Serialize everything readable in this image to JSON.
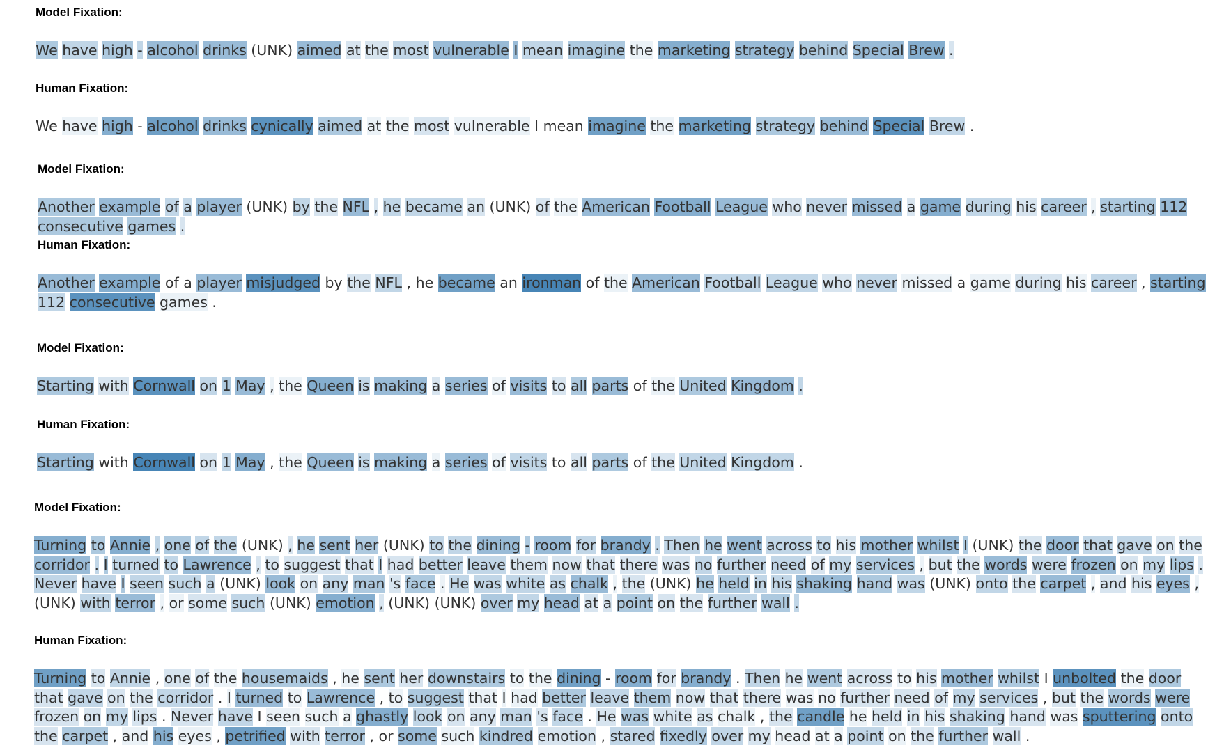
{
  "panels": [
    {
      "label": "Model Fixation:",
      "tokens": [
        "We",
        "have",
        "high",
        "-",
        "alcohol",
        "drinks",
        "(UNK)",
        "aimed",
        "at",
        "the",
        "most",
        "vulnerable",
        "I",
        "mean",
        "imagine",
        "the",
        "marketing",
        "strategy",
        "behind",
        "Special",
        "Brew",
        "."
      ],
      "weights": [
        0.4,
        0.3,
        0.4,
        0.3,
        0.5,
        0.5,
        0,
        0.5,
        0.2,
        0.2,
        0.3,
        0.5,
        0.5,
        0.3,
        0.4,
        0.1,
        0.6,
        0.5,
        0.4,
        0.5,
        0.6,
        0.2
      ]
    },
    {
      "label": "Human Fixation:",
      "tokens": [
        "We",
        "have",
        "high",
        "-",
        "alcohol",
        "drinks",
        "cynically",
        "aimed",
        "at",
        "the",
        "most",
        "vulnerable",
        "I",
        "mean",
        "imagine",
        "the",
        "marketing",
        "strategy",
        "behind",
        "Special",
        "Brew",
        "."
      ],
      "weights": [
        0,
        0.1,
        0.6,
        0,
        0.7,
        0.5,
        0.8,
        0.4,
        0.1,
        0.1,
        0.2,
        0.1,
        0,
        0,
        0.7,
        0.1,
        0.7,
        0.4,
        0.5,
        0.8,
        0.3,
        0
      ]
    },
    {
      "label": "Model Fixation:",
      "tokens": [
        "Another",
        "example",
        "of",
        "a",
        "player",
        "(UNK)",
        "by",
        "the",
        "NFL",
        ",",
        "he",
        "became",
        "an",
        "(UNK)",
        "of",
        "the",
        "American",
        "Football",
        "League",
        "who",
        "never",
        "missed",
        "a",
        "game",
        "during",
        "his",
        "career",
        ",",
        "starting",
        "112",
        "consecutive",
        "games",
        "."
      ],
      "weights": [
        0.4,
        0.5,
        0.3,
        0.3,
        0.5,
        0,
        0.3,
        0.2,
        0.5,
        0.2,
        0.3,
        0.3,
        0.2,
        0,
        0.2,
        0.1,
        0.5,
        0.6,
        0.5,
        0.2,
        0.3,
        0.5,
        0.2,
        0.6,
        0.3,
        0.2,
        0.4,
        0.1,
        0.4,
        0.5,
        0.4,
        0.4,
        0.2
      ]
    },
    {
      "label": "Human Fixation:",
      "tokens": [
        "Another",
        "example",
        "of",
        "a",
        "player",
        "misjudged",
        "by",
        "the",
        "NFL",
        ",",
        "he",
        "became",
        "an",
        "ironman",
        "of",
        "the",
        "American",
        "Football",
        "League",
        "who",
        "never",
        "missed",
        "a",
        "game",
        "during",
        "his",
        "career",
        ",",
        "starting",
        "112",
        "consecutive",
        "games",
        "."
      ],
      "weights": [
        0.5,
        0.6,
        0,
        0,
        0.5,
        0.8,
        0,
        0.2,
        0.3,
        0,
        0,
        0.7,
        0,
        0.9,
        0,
        0.1,
        0.5,
        0.3,
        0.3,
        0.2,
        0.3,
        0.1,
        0,
        0.1,
        0.2,
        0.1,
        0.3,
        0,
        0.6,
        0.3,
        0.8,
        0.1,
        0
      ]
    },
    {
      "label": "Model Fixation:",
      "tokens": [
        "Starting",
        "with",
        "Cornwall",
        "on",
        "1",
        "May",
        ",",
        "the",
        "Queen",
        "is",
        "making",
        "a",
        "series",
        "of",
        "visits",
        "to",
        "all",
        "parts",
        "of",
        "the",
        "United",
        "Kingdom",
        "."
      ],
      "weights": [
        0.4,
        0.2,
        0.8,
        0.3,
        0.4,
        0.5,
        0.1,
        0.1,
        0.6,
        0.3,
        0.5,
        0.2,
        0.5,
        0.1,
        0.5,
        0.2,
        0.4,
        0.5,
        0,
        0.1,
        0.4,
        0.5,
        0.3
      ]
    },
    {
      "label": "Human Fixation:",
      "tokens": [
        "Starting",
        "with",
        "Cornwall",
        "on",
        "1",
        "May",
        ",",
        "the",
        "Queen",
        "is",
        "making",
        "a",
        "series",
        "of",
        "visits",
        "to",
        "all",
        "parts",
        "of",
        "the",
        "United",
        "Kingdom",
        "."
      ],
      "weights": [
        0.5,
        0,
        0.9,
        0.2,
        0.3,
        0.6,
        0,
        0.1,
        0.5,
        0.3,
        0.5,
        0.1,
        0.5,
        0.1,
        0.3,
        0,
        0.2,
        0.4,
        0,
        0.2,
        0.3,
        0.3,
        0
      ]
    },
    {
      "label": "Model Fixation:",
      "tokens": [
        "Turning",
        "to",
        "Annie",
        ",",
        "one",
        "of",
        "the",
        "(UNK)",
        ",",
        "he",
        "sent",
        "her",
        "(UNK)",
        "to",
        "the",
        "dining",
        "-",
        "room",
        "for",
        "brandy",
        ".",
        "Then",
        "he",
        "went",
        "across",
        "to",
        "his",
        "mother",
        "whilst",
        "I",
        "(UNK)",
        "the",
        "door",
        "that",
        "gave",
        "on",
        "the",
        "corridor",
        ".",
        "I",
        "turned",
        "to",
        "Lawrence",
        ",",
        "to",
        "suggest",
        "that",
        "I",
        "had",
        "better",
        "leave",
        "them",
        "now",
        "that",
        "there",
        "was",
        "no",
        "further",
        "need",
        "of",
        "my",
        "services",
        ",",
        "but",
        "the",
        "words",
        "were",
        "frozen",
        "on",
        "my",
        "lips",
        ".",
        "Never",
        "have",
        "I",
        "seen",
        "such",
        "a",
        "(UNK)",
        "look",
        "on",
        "any",
        "man",
        "'s",
        "face",
        ".",
        "He",
        "was",
        "white",
        "as",
        "chalk",
        ",",
        "the",
        "(UNK)",
        "he",
        "held",
        "in",
        "his",
        "shaking",
        "hand",
        "was",
        "(UNK)",
        "onto",
        "the",
        "carpet",
        ",",
        "and",
        "his",
        "eyes",
        ",",
        "(UNK)",
        "with",
        "terror",
        ",",
        "or",
        "some",
        "such",
        "(UNK)",
        "emotion",
        ",",
        "(UNK)",
        "(UNK)",
        "over",
        "my",
        "head",
        "at",
        "a",
        "point",
        "on",
        "the",
        "further",
        "wall",
        "."
      ],
      "weights": [
        0.6,
        0.4,
        0.6,
        0.3,
        0.4,
        0.3,
        0.3,
        0,
        0.2,
        0.4,
        0.5,
        0.4,
        0,
        0.3,
        0.3,
        0.5,
        0.4,
        0.5,
        0.3,
        0.6,
        0.3,
        0.3,
        0.4,
        0.5,
        0.3,
        0.3,
        0.2,
        0.5,
        0.5,
        0.4,
        0,
        0.2,
        0.5,
        0.3,
        0.3,
        0.2,
        0.2,
        0.5,
        0.3,
        0.4,
        0.3,
        0.3,
        0.5,
        0.2,
        0.2,
        0.2,
        0.2,
        0.4,
        0.2,
        0.3,
        0.3,
        0.2,
        0.2,
        0.2,
        0.2,
        0.2,
        0.3,
        0.3,
        0.3,
        0.2,
        0.3,
        0.4,
        0.1,
        0.2,
        0.2,
        0.5,
        0.3,
        0.5,
        0.2,
        0.3,
        0.4,
        0.2,
        0.3,
        0.3,
        0.4,
        0.3,
        0.3,
        0.3,
        0,
        0.5,
        0.2,
        0.3,
        0.4,
        0.2,
        0.4,
        0.1,
        0.3,
        0.3,
        0.3,
        0.3,
        0.5,
        0.1,
        0.2,
        0,
        0.4,
        0.4,
        0.3,
        0.3,
        0.5,
        0.4,
        0.3,
        0,
        0.3,
        0.2,
        0.5,
        0.1,
        0.2,
        0.2,
        0.5,
        0.1,
        0,
        0.3,
        0.5,
        0.1,
        0.1,
        0.2,
        0.3,
        0,
        0.6,
        0.2,
        0,
        0,
        0.4,
        0.3,
        0.5,
        0.2,
        0.2,
        0.4,
        0.2,
        0.2,
        0.3,
        0.4,
        0.3
      ]
    },
    {
      "label": "Human Fixation:",
      "tokens": [
        "Turning",
        "to",
        "Annie",
        ",",
        "one",
        "of",
        "the",
        "housemaids",
        ",",
        "he",
        "sent",
        "her",
        "downstairs",
        "to",
        "the",
        "dining",
        "-",
        "room",
        "for",
        "brandy",
        ".",
        "Then",
        "he",
        "went",
        "across",
        "to",
        "his",
        "mother",
        "whilst",
        "I",
        "unbolted",
        "the",
        "door",
        "that",
        "gave",
        "on",
        "the",
        "corridor",
        ".",
        "I",
        "turned",
        "to",
        "Lawrence",
        ",",
        "to",
        "suggest",
        "that",
        "I",
        "had",
        "better",
        "leave",
        "them",
        "now",
        "that",
        "there",
        "was",
        "no",
        "further",
        "need",
        "of",
        "my",
        "services",
        ",",
        "but",
        "the",
        "words",
        "were",
        "frozen",
        "on",
        "my",
        "lips",
        ".",
        "Never",
        "have",
        "I",
        "seen",
        "such",
        "a",
        "ghastly",
        "look",
        "on",
        "any",
        "man",
        "'s",
        "face",
        ".",
        "He",
        "was",
        "white",
        "as",
        "chalk",
        ",",
        "the",
        "candle",
        "he",
        "held",
        "in",
        "his",
        "shaking",
        "hand",
        "was",
        "sputtering",
        "onto",
        "the",
        "carpet",
        ",",
        "and",
        "his",
        "eyes",
        ",",
        "petrified",
        "with",
        "terror",
        ",",
        "or",
        "some",
        "such",
        "kindred",
        "emotion",
        ",",
        "stared",
        "fixedly",
        "over",
        "my",
        "head",
        "at",
        "a",
        "point",
        "on",
        "the",
        "further",
        "wall",
        "."
      ],
      "weights": [
        0.7,
        0.2,
        0.3,
        0,
        0.2,
        0.2,
        0.1,
        0.4,
        0,
        0.1,
        0.4,
        0.2,
        0.4,
        0.1,
        0.1,
        0.7,
        0,
        0.6,
        0.2,
        0.6,
        0,
        0.3,
        0.2,
        0.4,
        0.2,
        0.1,
        0.2,
        0.5,
        0.4,
        0,
        0.8,
        0.1,
        0.4,
        0.2,
        0.3,
        0.2,
        0.2,
        0.3,
        0,
        0.1,
        0.5,
        0.1,
        0.5,
        0,
        0.1,
        0.4,
        0.1,
        0.1,
        0.1,
        0.4,
        0.3,
        0.4,
        0.2,
        0.2,
        0.2,
        0.1,
        0.1,
        0.2,
        0.2,
        0.2,
        0.3,
        0.3,
        0,
        0.2,
        0.2,
        0.4,
        0.5,
        0.2,
        0.2,
        0.3,
        0.2,
        0,
        0.2,
        0.3,
        0,
        0.1,
        0.1,
        0.1,
        0.6,
        0.3,
        0.2,
        0.2,
        0.3,
        0.2,
        0.3,
        0,
        0.2,
        0.4,
        0.2,
        0.2,
        0.1,
        0,
        0.2,
        0.7,
        0.1,
        0.2,
        0.2,
        0.2,
        0.3,
        0.2,
        0.1,
        0.8,
        0.3,
        0.2,
        0.4,
        0,
        0.1,
        0.6,
        0.1,
        0,
        0.7,
        0.2,
        0.4,
        0,
        0,
        0.5,
        0.1,
        0.4,
        0.2,
        0,
        0.3,
        0.4,
        0.3,
        0.2,
        0.1,
        0.1,
        0.1,
        0.3,
        0.1,
        0.2,
        0.4,
        0.2,
        0
      ]
    }
  ]
}
